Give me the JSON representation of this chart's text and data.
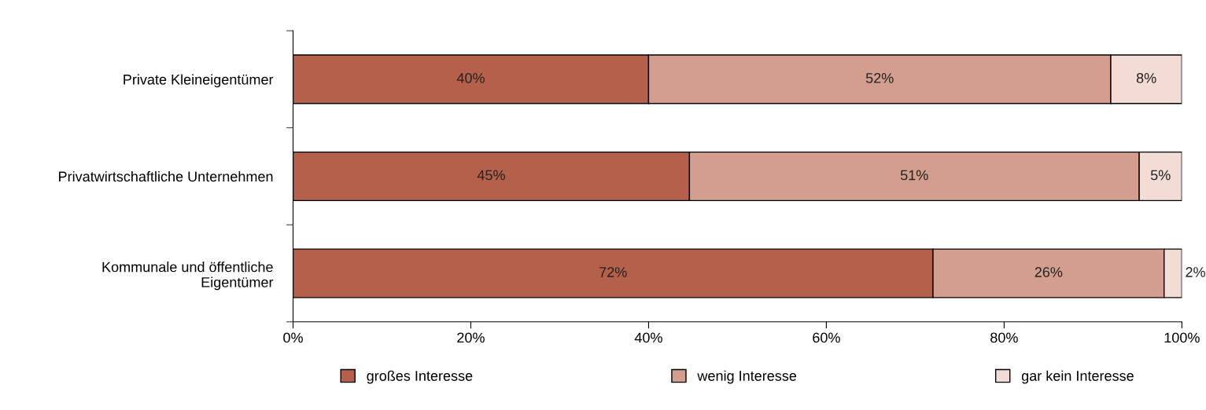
{
  "chart_data": {
    "type": "bar",
    "orientation": "horizontal",
    "stacked": true,
    "categories": [
      "Private Kleineigentümer",
      "Privatwirtschaftliche Unternehmen",
      "Kommunale und öffentliche\nEigentümer"
    ],
    "series": [
      {
        "name": "großes Interesse",
        "color": "#b5604a",
        "values": [
          40,
          44.6,
          72
        ],
        "value_labels": [
          "40%",
          "45%",
          "72%"
        ]
      },
      {
        "name": "wenig Interesse",
        "color": "#d49e8f",
        "values": [
          52,
          50.6,
          26
        ],
        "value_labels": [
          "52%",
          "51%",
          "26%"
        ]
      },
      {
        "name": "gar kein Interesse",
        "color": "#f2dcd5",
        "values": [
          8,
          4.8,
          2
        ],
        "value_labels": [
          "8%",
          "5%",
          "2%"
        ]
      }
    ],
    "xlim": [
      0,
      100
    ],
    "xticks": [
      {
        "value": 0,
        "label": "0%"
      },
      {
        "value": 20,
        "label": "20%"
      },
      {
        "value": 40,
        "label": "40%"
      },
      {
        "value": 60,
        "label": "60%"
      },
      {
        "value": 80,
        "label": "80%"
      },
      {
        "value": 100,
        "label": "100%"
      }
    ],
    "legend": "bottom",
    "grid": false
  }
}
